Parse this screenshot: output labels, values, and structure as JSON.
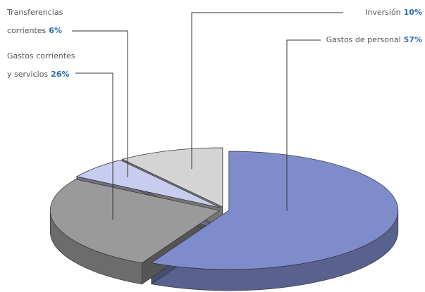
{
  "chart_data": {
    "type": "pie",
    "categories": [
      "Gastos de personal",
      "Gastos corrientes y servicios",
      "Transferencias corrientes",
      "Inversión"
    ],
    "values": [
      57,
      26,
      6,
      10
    ],
    "value_labels": [
      "57%",
      "26%",
      "6%",
      "10%"
    ],
    "colors": [
      "#7f8ccc",
      "#9a9a9a",
      "#c8ccef",
      "#d4d4d4"
    ]
  }
}
